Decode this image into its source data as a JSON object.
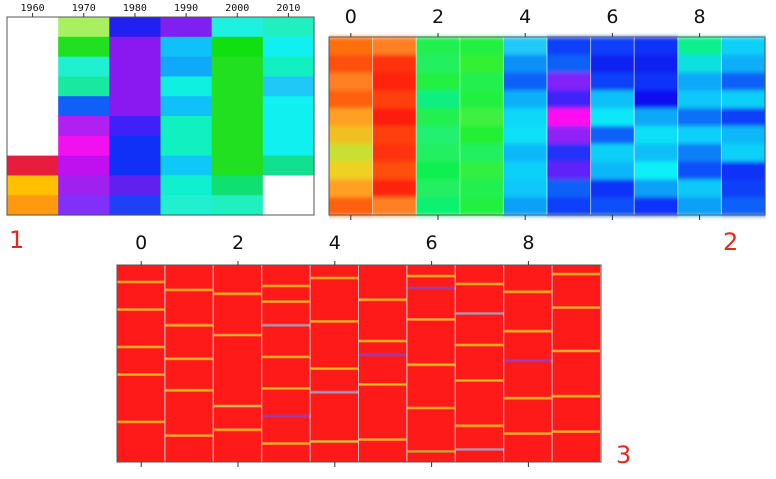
{
  "colors": {
    "panel_label": "#e8281e",
    "heat_base_panel3": "#ff1a1a",
    "border": "#555555"
  },
  "chart_data": [
    {
      "type": "heatmap",
      "panel_label": "1",
      "x_ticks": [
        "1960",
        "1970",
        "1980",
        "1990",
        "2000",
        "2010"
      ],
      "columns": [
        [
          "#ffffff",
          "#ffffff",
          "#ffffff",
          "#ffffff",
          "#ffffff",
          "#ffffff",
          "#ffffff",
          "#e81c3c",
          "#ffc000",
          "#ff9a10"
        ],
        [
          "#a8f060",
          "#20e020",
          "#20f0d0",
          "#18e8a0",
          "#1060f8",
          "#b020f0",
          "#f010f0",
          "#c010f0",
          "#a020f0",
          "#8030f8"
        ],
        [
          "#2020f0",
          "#8a18f0",
          "#8a18f0",
          "#8a18f0",
          "#8a18f0",
          "#4020f8",
          "#1030f8",
          "#1030f8",
          "#6020f0",
          "#2040f8"
        ],
        [
          "#8020f0",
          "#10c0f8",
          "#10a8f8",
          "#10f0e0",
          "#10c0f8",
          "#10f0c0",
          "#10f0c0",
          "#10c8f8",
          "#10f0d0",
          "#20f0d0"
        ],
        [
          "#20f0e0",
          "#10e010",
          "#20e020",
          "#20e020",
          "#20e020",
          "#20e020",
          "#20e020",
          "#20e020",
          "#10e070",
          "#20f0c0"
        ],
        [
          "#20f0c0",
          "#10f0f0",
          "#10f0c0",
          "#20c8f8",
          "#10f0f0",
          "#10f0f0",
          "#10f0f0",
          "#10e090",
          "#ffffff",
          "#ffffff"
        ]
      ]
    },
    {
      "type": "heatmap",
      "panel_label": "2",
      "x_ticks": [
        "0",
        "2",
        "4",
        "6",
        "8"
      ],
      "columns": [
        [
          "#ff7010",
          "#ff5010",
          "#ff8020",
          "#ff6010",
          "#ffa020",
          "#f0c020",
          "#c8e030",
          "#f0d020",
          "#ffa020",
          "#ff6010"
        ],
        [
          "#ff8020",
          "#ff3010",
          "#ff2010",
          "#ff4010",
          "#ff1a10",
          "#ff4010",
          "#ff3010",
          "#ff5010",
          "#ff2010",
          "#ff8020"
        ],
        [
          "#20f050",
          "#20f060",
          "#20f040",
          "#10f080",
          "#20f050",
          "#20f070",
          "#20f060",
          "#10f050",
          "#20f060",
          "#10f070"
        ],
        [
          "#20f040",
          "#30f030",
          "#20f050",
          "#20f040",
          "#40f040",
          "#20f030",
          "#20f060",
          "#30f040",
          "#20f050",
          "#20f040"
        ],
        [
          "#20c8f8",
          "#1090f8",
          "#1060f8",
          "#10b0f8",
          "#10d8f8",
          "#10e0f8",
          "#10b8f8",
          "#10d0f8",
          "#10c8f8",
          "#10a0f8"
        ],
        [
          "#1040f8",
          "#1060f8",
          "#8020f8",
          "#4020f8",
          "#ff10f0",
          "#9020f8",
          "#2030f8",
          "#6020f8",
          "#1060f8",
          "#1040f8"
        ],
        [
          "#1040f8",
          "#1020f0",
          "#1040f8",
          "#10c0f8",
          "#10e8f8",
          "#1060f8",
          "#10d0f8",
          "#10b8f8",
          "#1030f8",
          "#1050f8"
        ],
        [
          "#1030f8",
          "#1020f0",
          "#1030f8",
          "#1010f0",
          "#10a8f8",
          "#10e0f8",
          "#10c0f8",
          "#10f0f8",
          "#10a0f8",
          "#1030f8"
        ],
        [
          "#10f090",
          "#10e0e0",
          "#10a8f8",
          "#10c8f8",
          "#1070f8",
          "#10d0f8",
          "#1080f8",
          "#1050f8",
          "#10c8f8",
          "#10a0f8"
        ],
        [
          "#10d0f8",
          "#10b0f8",
          "#1060f8",
          "#10d0f8",
          "#1040f8",
          "#10b8f8",
          "#10d0f8",
          "#1030f8",
          "#1040f8",
          "#1060f8"
        ]
      ]
    },
    {
      "type": "heatmap",
      "panel_label": "3",
      "x_ticks": [
        "0",
        "2",
        "4",
        "6",
        "8"
      ],
      "base_color": "#ff1a1a",
      "stripes": [
        [
          [
            0.08,
            "#ffc020"
          ],
          [
            0.22,
            "#ffc020"
          ],
          [
            0.41,
            "#ffc020"
          ],
          [
            0.55,
            "#ffc020"
          ],
          [
            0.79,
            "#ffc020"
          ]
        ],
        [
          [
            0.12,
            "#ffc020"
          ],
          [
            0.3,
            "#ffc020"
          ],
          [
            0.47,
            "#ffc020"
          ],
          [
            0.63,
            "#ffc020"
          ],
          [
            0.86,
            "#ffc020"
          ]
        ],
        [
          [
            0.14,
            "#ffc020"
          ],
          [
            0.35,
            "#ffc020"
          ],
          [
            0.71,
            "#d0d060"
          ],
          [
            0.83,
            "#ffc020"
          ]
        ],
        [
          [
            0.1,
            "#ffc020"
          ],
          [
            0.18,
            "#ffc020"
          ],
          [
            0.3,
            "#a0a0b0"
          ],
          [
            0.46,
            "#ffc020"
          ],
          [
            0.62,
            "#ffc020"
          ],
          [
            0.76,
            "#9040c0"
          ],
          [
            0.9,
            "#ffc020"
          ]
        ],
        [
          [
            0.06,
            "#ffc020"
          ],
          [
            0.28,
            "#ffc020"
          ],
          [
            0.52,
            "#ffc020"
          ],
          [
            0.64,
            "#a0a0c0"
          ],
          [
            0.89,
            "#d0d040"
          ]
        ],
        [
          [
            0.17,
            "#ffc020"
          ],
          [
            0.38,
            "#ffc020"
          ],
          [
            0.45,
            "#9040c0"
          ],
          [
            0.6,
            "#ffc020"
          ],
          [
            0.88,
            "#ffc020"
          ]
        ],
        [
          [
            0.05,
            "#ffc020"
          ],
          [
            0.11,
            "#9040c0"
          ],
          [
            0.27,
            "#ffc020"
          ],
          [
            0.5,
            "#ffc020"
          ],
          [
            0.72,
            "#ffc020"
          ],
          [
            0.94,
            "#c0b030"
          ]
        ],
        [
          [
            0.09,
            "#ffc020"
          ],
          [
            0.24,
            "#a0a0c0"
          ],
          [
            0.4,
            "#ffc020"
          ],
          [
            0.58,
            "#ffc020"
          ],
          [
            0.81,
            "#ffc020"
          ],
          [
            0.93,
            "#a0a0c0"
          ]
        ],
        [
          [
            0.13,
            "#ffc020"
          ],
          [
            0.33,
            "#ffc020"
          ],
          [
            0.48,
            "#9040c0"
          ],
          [
            0.67,
            "#ffc020"
          ],
          [
            0.85,
            "#ffc020"
          ]
        ],
        [
          [
            0.04,
            "#ffc020"
          ],
          [
            0.21,
            "#ffc020"
          ],
          [
            0.43,
            "#ffc020"
          ],
          [
            0.66,
            "#ffc020"
          ],
          [
            0.84,
            "#ffc020"
          ]
        ]
      ]
    }
  ]
}
